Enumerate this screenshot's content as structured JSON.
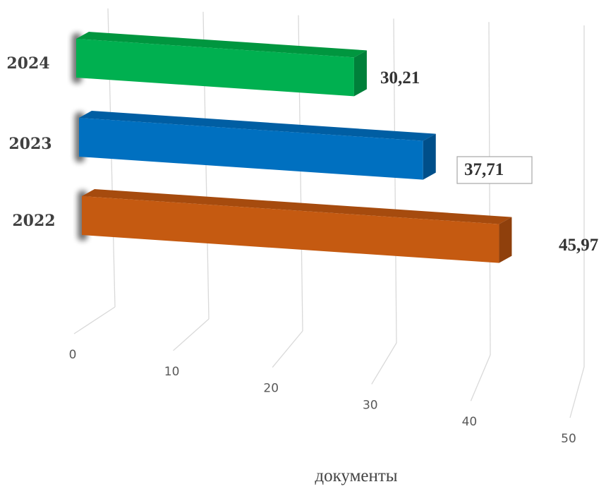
{
  "chart_data": {
    "type": "bar",
    "orientation": "horizontal",
    "three_d": true,
    "categories": [
      "2024",
      "2023",
      "2022"
    ],
    "values": [
      30.21,
      37.71,
      45.97
    ],
    "value_labels": [
      "30,21",
      "37,71",
      "45,97"
    ],
    "bar_colors": [
      "#00b050",
      "#0070c0",
      "#c55a11"
    ],
    "bar_side_colors": [
      "#00803a",
      "#004f8a",
      "#8f400c"
    ],
    "bar_top_colors": [
      "#00963f",
      "#005ea3",
      "#a64b0e"
    ],
    "xlabel": "документы",
    "xlim": [
      0,
      50
    ],
    "x_ticks": [
      "0",
      "10",
      "20",
      "30",
      "40",
      "50"
    ],
    "grid": true,
    "legend": "none"
  }
}
